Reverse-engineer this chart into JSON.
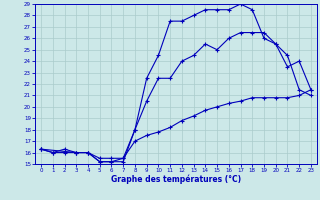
{
  "xlabel": "Graphe des températures (°C)",
  "bg_color": "#cce8e8",
  "grid_color": "#aacccc",
  "line_color": "#0000bb",
  "xlim_min": -0.5,
  "xlim_max": 23.5,
  "ylim_min": 15,
  "ylim_max": 29,
  "xticks": [
    0,
    1,
    2,
    3,
    4,
    5,
    6,
    7,
    8,
    9,
    10,
    11,
    12,
    13,
    14,
    15,
    16,
    17,
    18,
    19,
    20,
    21,
    22,
    23
  ],
  "yticks": [
    15,
    16,
    17,
    18,
    19,
    20,
    21,
    22,
    23,
    24,
    25,
    26,
    27,
    28,
    29
  ],
  "top_x": [
    0,
    1,
    2,
    3,
    4,
    5,
    6,
    7,
    8,
    9,
    10,
    11,
    12,
    13,
    14,
    15,
    16,
    17,
    18,
    19,
    20,
    21,
    22,
    23
  ],
  "top_y": [
    16.3,
    16.0,
    16.3,
    16.0,
    16.0,
    15.2,
    15.2,
    15.2,
    18.0,
    22.5,
    24.5,
    27.5,
    27.5,
    28.0,
    28.5,
    28.5,
    28.5,
    29.0,
    28.5,
    26.0,
    25.5,
    23.5,
    24.0,
    21.5
  ],
  "mid_x": [
    0,
    1,
    2,
    3,
    4,
    5,
    6,
    7,
    8,
    9,
    10,
    11,
    12,
    13,
    14,
    15,
    16,
    17,
    18,
    19,
    20,
    21,
    22,
    23
  ],
  "mid_y": [
    16.3,
    16.0,
    16.0,
    16.0,
    16.0,
    15.2,
    15.2,
    15.5,
    18.0,
    20.5,
    22.5,
    22.5,
    24.0,
    24.5,
    25.5,
    25.0,
    26.0,
    26.5,
    26.5,
    26.5,
    25.5,
    24.5,
    21.5,
    21.0
  ],
  "bot_x": [
    0,
    3,
    4,
    5,
    6,
    7,
    8,
    9,
    10,
    11,
    12,
    13,
    14,
    15,
    16,
    17,
    18,
    19,
    20,
    21,
    22,
    23
  ],
  "bot_y": [
    16.3,
    16.0,
    16.0,
    15.5,
    15.5,
    15.5,
    17.0,
    17.5,
    17.8,
    18.2,
    18.8,
    19.2,
    19.7,
    20.0,
    20.3,
    20.5,
    20.8,
    20.8,
    20.8,
    20.8,
    21.0,
    21.5
  ]
}
